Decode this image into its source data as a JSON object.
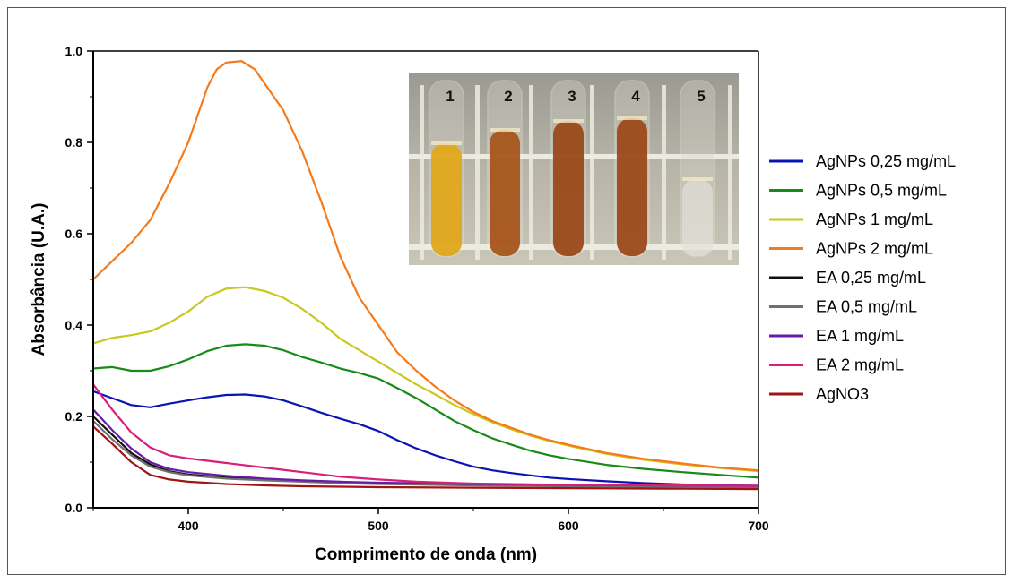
{
  "chart_data": {
    "type": "line",
    "xlabel": "Comprimento de onda (nm)",
    "ylabel": "Absorbância (U.A.)",
    "xlim": [
      350,
      700
    ],
    "ylim": [
      0.0,
      1.0
    ],
    "xticks": [
      "400",
      "500",
      "600",
      "700"
    ],
    "yticks": [
      "0.0",
      "0.2",
      "0.4",
      "0.6",
      "0.8",
      "1.0"
    ],
    "legend_position": "right",
    "inset_photo": {
      "tube_labels": [
        "1",
        "2",
        "3",
        "4",
        "5"
      ],
      "tube_colors": [
        "#e0a81c",
        "#a8551c",
        "#9a4a1a",
        "#9c4a1b",
        "#e8e8e0"
      ]
    },
    "series": [
      {
        "name": "AgNPs 0,25 mg/mL",
        "color": "#0a14b4",
        "points": [
          [
            350,
            0.255
          ],
          [
            360,
            0.24
          ],
          [
            370,
            0.225
          ],
          [
            380,
            0.22
          ],
          [
            390,
            0.228
          ],
          [
            400,
            0.235
          ],
          [
            410,
            0.242
          ],
          [
            420,
            0.247
          ],
          [
            430,
            0.248
          ],
          [
            440,
            0.244
          ],
          [
            450,
            0.235
          ],
          [
            460,
            0.222
          ],
          [
            470,
            0.208
          ],
          [
            480,
            0.195
          ],
          [
            490,
            0.183
          ],
          [
            500,
            0.168
          ],
          [
            510,
            0.148
          ],
          [
            520,
            0.13
          ],
          [
            530,
            0.115
          ],
          [
            540,
            0.102
          ],
          [
            550,
            0.09
          ],
          [
            560,
            0.082
          ],
          [
            570,
            0.076
          ],
          [
            580,
            0.071
          ],
          [
            590,
            0.066
          ],
          [
            600,
            0.063
          ],
          [
            620,
            0.058
          ],
          [
            640,
            0.054
          ],
          [
            660,
            0.051
          ],
          [
            680,
            0.049
          ],
          [
            700,
            0.048
          ]
        ]
      },
      {
        "name": "AgNPs 0,5 mg/mL",
        "color": "#178a17",
        "points": [
          [
            350,
            0.305
          ],
          [
            360,
            0.308
          ],
          [
            370,
            0.3
          ],
          [
            380,
            0.3
          ],
          [
            390,
            0.31
          ],
          [
            400,
            0.325
          ],
          [
            410,
            0.343
          ],
          [
            420,
            0.355
          ],
          [
            430,
            0.358
          ],
          [
            440,
            0.355
          ],
          [
            450,
            0.345
          ],
          [
            460,
            0.33
          ],
          [
            470,
            0.318
          ],
          [
            480,
            0.305
          ],
          [
            490,
            0.295
          ],
          [
            500,
            0.283
          ],
          [
            510,
            0.262
          ],
          [
            520,
            0.24
          ],
          [
            530,
            0.215
          ],
          [
            540,
            0.19
          ],
          [
            550,
            0.17
          ],
          [
            560,
            0.152
          ],
          [
            570,
            0.138
          ],
          [
            580,
            0.125
          ],
          [
            590,
            0.115
          ],
          [
            600,
            0.107
          ],
          [
            620,
            0.094
          ],
          [
            640,
            0.085
          ],
          [
            660,
            0.078
          ],
          [
            680,
            0.072
          ],
          [
            700,
            0.066
          ]
        ]
      },
      {
        "name": "AgNPs 1 mg/mL",
        "color": "#c8c81e",
        "points": [
          [
            350,
            0.36
          ],
          [
            360,
            0.372
          ],
          [
            370,
            0.378
          ],
          [
            380,
            0.386
          ],
          [
            390,
            0.405
          ],
          [
            400,
            0.43
          ],
          [
            410,
            0.462
          ],
          [
            420,
            0.48
          ],
          [
            430,
            0.483
          ],
          [
            440,
            0.475
          ],
          [
            450,
            0.46
          ],
          [
            460,
            0.435
          ],
          [
            470,
            0.405
          ],
          [
            480,
            0.37
          ],
          [
            490,
            0.345
          ],
          [
            500,
            0.32
          ],
          [
            510,
            0.295
          ],
          [
            520,
            0.27
          ],
          [
            530,
            0.248
          ],
          [
            540,
            0.225
          ],
          [
            550,
            0.205
          ],
          [
            560,
            0.187
          ],
          [
            570,
            0.172
          ],
          [
            580,
            0.158
          ],
          [
            590,
            0.146
          ],
          [
            600,
            0.136
          ],
          [
            620,
            0.118
          ],
          [
            640,
            0.105
          ],
          [
            660,
            0.095
          ],
          [
            680,
            0.087
          ],
          [
            700,
            0.08
          ]
        ]
      },
      {
        "name": "AgNPs 2 mg/mL",
        "color": "#f57a1a",
        "points": [
          [
            350,
            0.5
          ],
          [
            360,
            0.54
          ],
          [
            370,
            0.58
          ],
          [
            380,
            0.63
          ],
          [
            390,
            0.71
          ],
          [
            400,
            0.8
          ],
          [
            405,
            0.86
          ],
          [
            410,
            0.92
          ],
          [
            415,
            0.96
          ],
          [
            420,
            0.975
          ],
          [
            428,
            0.978
          ],
          [
            435,
            0.96
          ],
          [
            440,
            0.93
          ],
          [
            450,
            0.87
          ],
          [
            460,
            0.78
          ],
          [
            470,
            0.67
          ],
          [
            480,
            0.55
          ],
          [
            490,
            0.46
          ],
          [
            500,
            0.4
          ],
          [
            510,
            0.34
          ],
          [
            520,
            0.3
          ],
          [
            530,
            0.265
          ],
          [
            540,
            0.235
          ],
          [
            550,
            0.21
          ],
          [
            560,
            0.19
          ],
          [
            570,
            0.175
          ],
          [
            580,
            0.16
          ],
          [
            590,
            0.148
          ],
          [
            600,
            0.138
          ],
          [
            620,
            0.12
          ],
          [
            640,
            0.107
          ],
          [
            660,
            0.097
          ],
          [
            680,
            0.088
          ],
          [
            700,
            0.082
          ]
        ]
      },
      {
        "name": "EA 0,25 mg/mL",
        "color": "#111111",
        "points": [
          [
            350,
            0.2
          ],
          [
            360,
            0.16
          ],
          [
            370,
            0.12
          ],
          [
            380,
            0.095
          ],
          [
            390,
            0.08
          ],
          [
            400,
            0.073
          ],
          [
            420,
            0.066
          ],
          [
            440,
            0.061
          ],
          [
            460,
            0.058
          ],
          [
            480,
            0.055
          ],
          [
            500,
            0.053
          ],
          [
            550,
            0.05
          ],
          [
            600,
            0.048
          ],
          [
            650,
            0.047
          ],
          [
            700,
            0.046
          ]
        ]
      },
      {
        "name": "EA 0,5 mg/mL",
        "color": "#707070",
        "points": [
          [
            350,
            0.19
          ],
          [
            360,
            0.15
          ],
          [
            370,
            0.115
          ],
          [
            380,
            0.09
          ],
          [
            390,
            0.078
          ],
          [
            400,
            0.071
          ],
          [
            420,
            0.064
          ],
          [
            440,
            0.06
          ],
          [
            460,
            0.057
          ],
          [
            480,
            0.054
          ],
          [
            500,
            0.052
          ],
          [
            550,
            0.049
          ],
          [
            600,
            0.047
          ],
          [
            650,
            0.046
          ],
          [
            700,
            0.045
          ]
        ]
      },
      {
        "name": "EA 1 mg/mL",
        "color": "#6a1aa8",
        "points": [
          [
            350,
            0.215
          ],
          [
            360,
            0.17
          ],
          [
            370,
            0.13
          ],
          [
            380,
            0.1
          ],
          [
            390,
            0.085
          ],
          [
            400,
            0.078
          ],
          [
            420,
            0.07
          ],
          [
            440,
            0.064
          ],
          [
            460,
            0.06
          ],
          [
            480,
            0.057
          ],
          [
            500,
            0.055
          ],
          [
            550,
            0.052
          ],
          [
            600,
            0.05
          ],
          [
            650,
            0.049
          ],
          [
            700,
            0.048
          ]
        ]
      },
      {
        "name": "EA 2 mg/mL",
        "color": "#d81e78",
        "points": [
          [
            350,
            0.27
          ],
          [
            360,
            0.215
          ],
          [
            370,
            0.165
          ],
          [
            380,
            0.132
          ],
          [
            390,
            0.115
          ],
          [
            400,
            0.108
          ],
          [
            420,
            0.098
          ],
          [
            440,
            0.088
          ],
          [
            460,
            0.078
          ],
          [
            480,
            0.068
          ],
          [
            500,
            0.062
          ],
          [
            520,
            0.057
          ],
          [
            550,
            0.053
          ],
          [
            600,
            0.05
          ],
          [
            650,
            0.049
          ],
          [
            700,
            0.048
          ]
        ]
      },
      {
        "name": "AgNO3",
        "color": "#a01414",
        "points": [
          [
            350,
            0.178
          ],
          [
            360,
            0.14
          ],
          [
            370,
            0.1
          ],
          [
            380,
            0.072
          ],
          [
            390,
            0.062
          ],
          [
            400,
            0.057
          ],
          [
            420,
            0.052
          ],
          [
            440,
            0.049
          ],
          [
            460,
            0.047
          ],
          [
            480,
            0.046
          ],
          [
            500,
            0.045
          ],
          [
            550,
            0.044
          ],
          [
            600,
            0.043
          ],
          [
            650,
            0.042
          ],
          [
            700,
            0.041
          ]
        ]
      }
    ]
  }
}
